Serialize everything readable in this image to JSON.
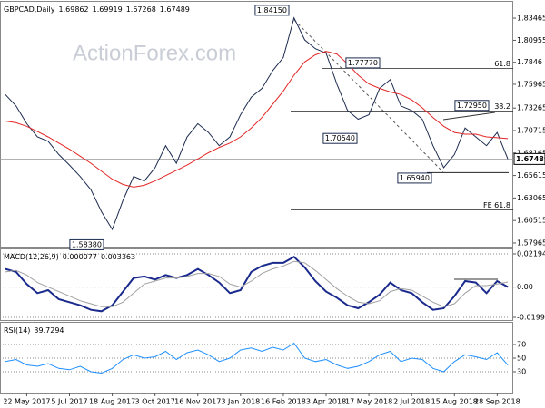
{
  "watermark": "ActionForex.com",
  "chart_data": [
    {
      "type": "line",
      "title": "GBPCAD,Daily",
      "header_values": [
        1.69862,
        1.69919,
        1.67268,
        1.67489
      ],
      "categories": [
        null,
        null,
        "22 May 2017",
        null,
        null,
        null,
        "5 Jul 2017",
        null,
        null,
        null,
        "18 Aug 2017",
        null,
        null,
        null,
        "3 Oct 2017",
        null,
        null,
        null,
        "16 Nov 2017",
        null,
        null,
        null,
        "3 Jan 2018",
        null,
        null,
        null,
        "16 Feb 2018",
        null,
        null,
        null,
        "3 Apr 2018",
        null,
        null,
        null,
        "17 May 2018",
        null,
        null,
        null,
        "2 Jul 2018",
        null,
        null,
        null,
        "15 Aug 2018",
        null,
        null,
        null,
        "28 Sep 2018",
        null
      ],
      "series": [
        {
          "color": "#1d2b4f",
          "values": [
            1.748,
            1.735,
            1.715,
            1.7,
            1.695,
            1.68,
            1.668,
            1.655,
            1.64,
            1.615,
            1.595,
            1.628,
            1.655,
            1.65,
            1.665,
            1.69,
            1.67,
            1.7,
            1.715,
            1.705,
            1.69,
            1.7,
            1.725,
            1.745,
            1.755,
            1.775,
            1.79,
            1.835,
            1.81,
            1.8,
            1.795,
            1.76,
            1.73,
            1.72,
            1.725,
            1.755,
            1.765,
            1.735,
            1.73,
            1.72,
            1.69,
            1.665,
            1.68,
            1.71,
            1.7,
            1.69,
            1.705,
            1.67489
          ]
        },
        {
          "color": "#e32626",
          "values": [
            1.718,
            1.716,
            1.712,
            1.706,
            1.7,
            1.693,
            1.686,
            1.678,
            1.67,
            1.661,
            1.652,
            1.646,
            1.643,
            1.645,
            1.65,
            1.656,
            1.662,
            1.668,
            1.675,
            1.682,
            1.688,
            1.693,
            1.7,
            1.71,
            1.722,
            1.737,
            1.752,
            1.77,
            1.785,
            1.793,
            1.797,
            1.794,
            1.783,
            1.77,
            1.76,
            1.755,
            1.751,
            1.748,
            1.742,
            1.733,
            1.722,
            1.712,
            1.705,
            1.703,
            1.703,
            1.7,
            1.699,
            1.698
          ]
        }
      ],
      "ylim": [
        1.5755,
        1.8532
      ],
      "yticks": [
        1.83465,
        1.80955,
        1.7846,
        1.75965,
        1.73265,
        1.70715,
        1.68165,
        1.65615,
        1.63065,
        1.60515,
        1.57965
      ],
      "grid": false,
      "annotations": [
        {
          "value": 1.8415,
          "label": "1.84150"
        },
        {
          "value": 1.7777,
          "label": "1.77770"
        },
        {
          "value": 1.7295,
          "label": "1.72950"
        },
        {
          "value": 1.7054,
          "label": "1.70540"
        },
        {
          "value": 1.6594,
          "label": "1.65940"
        },
        {
          "value": 1.5838,
          "label": "1.58380"
        }
      ],
      "levels": [
        {
          "label": "61.8",
          "value": 1.7777
        },
        {
          "label": "38.2",
          "value": 1.7293
        },
        {
          "label": "FE 61.8",
          "value": 1.617
        }
      ],
      "last_price": 1.67489
    },
    {
      "type": "line",
      "title": "MACD(12,26,9)",
      "header_values": [
        7.7e-05,
        0.003363
      ],
      "series": [
        {
          "color": "#1a2a8c",
          "values": [
            0.012,
            0.01,
            0.002,
            -0.004,
            -0.002,
            -0.008,
            -0.01,
            -0.012,
            -0.015,
            -0.016,
            -0.012,
            -0.003,
            0.006,
            0.007,
            0.005,
            0.008,
            0.006,
            0.008,
            0.012,
            0.008,
            0.003,
            -0.004,
            -0.002,
            0.01,
            0.014,
            0.016,
            0.016,
            0.02,
            0.013,
            0.004,
            -0.003,
            -0.007,
            -0.012,
            -0.014,
            -0.01,
            -0.005,
            0.003,
            -0.002,
            -0.004,
            -0.01,
            -0.015,
            -0.014,
            -0.006,
            0.004,
            0.003,
            -0.004,
            0.004,
            7.7e-05
          ]
        },
        {
          "color": "#a0a0a0",
          "values": [
            0.01,
            0.011,
            0.008,
            0.003,
            0.0,
            -0.003,
            -0.006,
            -0.009,
            -0.011,
            -0.013,
            -0.013,
            -0.01,
            -0.004,
            0.002,
            0.004,
            0.006,
            0.006,
            0.007,
            0.009,
            0.009,
            0.007,
            0.002,
            0.0,
            0.004,
            0.009,
            0.012,
            0.014,
            0.017,
            0.016,
            0.011,
            0.005,
            -0.001,
            -0.006,
            -0.01,
            -0.011,
            -0.009,
            -0.003,
            -0.001,
            -0.002,
            -0.006,
            -0.01,
            -0.013,
            -0.011,
            -0.004,
            0.001,
            0.001,
            0.002,
            0.003363
          ]
        }
      ],
      "ylim": [
        -0.02179,
        0.02494
      ],
      "yticks": [
        0.021949,
        {
          "value": 0,
          "label": "0.00"
        },
        -0.019995
      ],
      "grid": true
    },
    {
      "type": "line",
      "title": "RSI(14)",
      "header_values": [
        39.7294
      ],
      "series": [
        {
          "color": "#1e90ff",
          "values": [
            45,
            48,
            40,
            38,
            42,
            35,
            33,
            38,
            30,
            28,
            35,
            48,
            55,
            50,
            52,
            60,
            48,
            58,
            62,
            55,
            45,
            50,
            62,
            65,
            60,
            66,
            62,
            72,
            50,
            45,
            48,
            40,
            35,
            38,
            45,
            55,
            60,
            45,
            50,
            48,
            35,
            30,
            45,
            55,
            52,
            48,
            58,
            39.7294
          ]
        }
      ],
      "ylim": [
        -2,
        102
      ],
      "yticks": [
        70,
        50,
        30
      ],
      "grid": true
    }
  ]
}
